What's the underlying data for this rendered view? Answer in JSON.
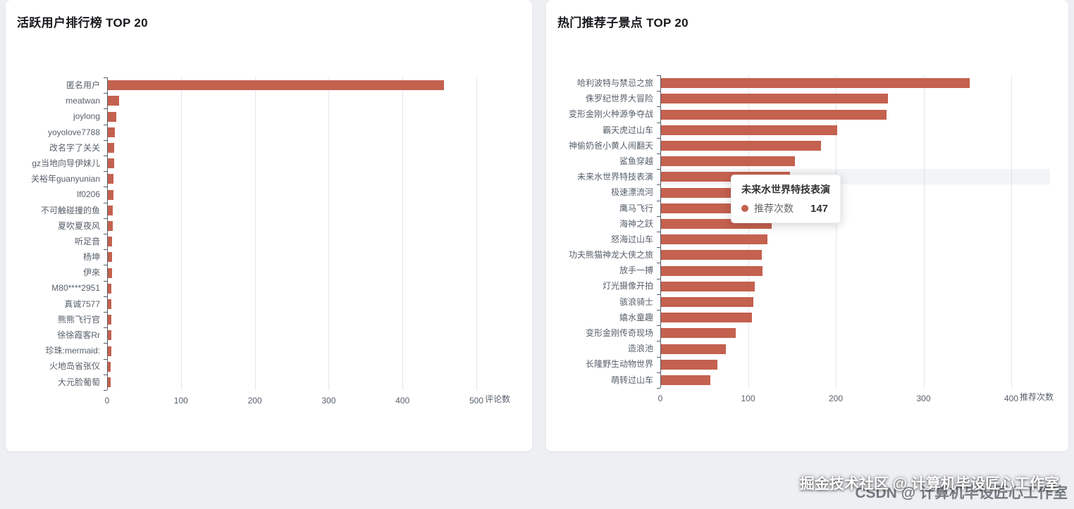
{
  "page": {
    "background": "#edeff2"
  },
  "chart_data": [
    {
      "type": "bar",
      "orientation": "horizontal",
      "title": "活跃用户排行榜 TOP 20",
      "series_name": "评论数",
      "categories": [
        "匿名用户",
        "meatwan",
        "joylong",
        "yoyolove7788",
        "改名字了关关",
        "gz当地向导伊妹儿",
        "关裕年guanyunian",
        "lf0206",
        "不可触碰撞的鱼",
        "夏吹夏夜风",
        "听足音",
        "杨坤",
        "伊來",
        "M80****2951",
        "真诚7577",
        "熊熊飞行官",
        "徐徐霞客Rr",
        "珍珠:mermaid:",
        "火地岛省张仪",
        "大元脸葡萄"
      ],
      "values": [
        455,
        15,
        11,
        10,
        9,
        9,
        8,
        8,
        7,
        7,
        6,
        6,
        6,
        5,
        5,
        5,
        5,
        5,
        4,
        4
      ],
      "xlabel": "评论数",
      "xlim": [
        0,
        500
      ],
      "xticks": [
        0,
        100,
        200,
        300,
        400,
        500
      ],
      "bar_color": "#c4614f",
      "grid": true,
      "legend_position": "none"
    },
    {
      "type": "bar",
      "orientation": "horizontal",
      "title": "热门推荐子景点 TOP 20",
      "series_name": "推荐次数",
      "categories": [
        "哈利波特与禁忌之旅",
        "侏罗纪世界大冒险",
        "变形金刚火种源争夺战",
        "霸天虎过山车",
        "神偷奶爸小黄人闹翻天",
        "鲨鱼穿越",
        "未来水世界特技表演",
        "极速漂流河",
        "鹰马飞行",
        "海神之跃",
        "怒海过山车",
        "功夫熊猫神龙大侠之旅",
        "放手一搏",
        "灯光摄像开拍",
        "骇浪骑士",
        "嬉水童趣",
        "变形金刚传奇现场",
        "造浪池",
        "长隆野生动物世界",
        "萌转过山车"
      ],
      "values": [
        352,
        259,
        257,
        201,
        182,
        153,
        147,
        142,
        135,
        126,
        121,
        115,
        116,
        107,
        105,
        104,
        85,
        74,
        64,
        56
      ],
      "xlabel": "推荐次数",
      "xlim": [
        0,
        400
      ],
      "xticks": [
        0,
        100,
        200,
        300,
        400
      ],
      "bar_color": "#c4614f",
      "grid": true,
      "legend_position": "none",
      "hover": {
        "index": 6,
        "category": "未来水世界特技表演",
        "series": "推荐次数",
        "value": 147
      }
    }
  ],
  "watermark": {
    "primary": "掘金技术社区 @ 计算机毕设匠心工作室",
    "secondary": "CSDN @ 计算机毕设匠心工作室"
  }
}
